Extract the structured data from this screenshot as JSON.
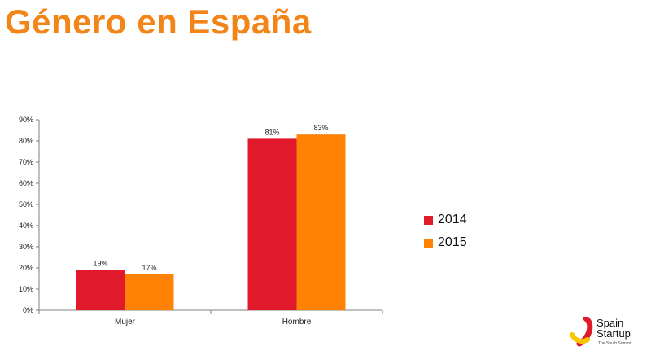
{
  "page": {
    "title": "Género en España"
  },
  "colors": {
    "title": "#f38418",
    "series_2014": "#e0192b",
    "series_2015": "#ff8205",
    "axis": "#7f7f7f"
  },
  "chart_data": {
    "type": "bar",
    "categories": [
      "Mujer",
      "Hombre"
    ],
    "series": [
      {
        "name": "2014",
        "values": [
          19,
          81
        ],
        "labels": [
          "19%",
          "81%"
        ]
      },
      {
        "name": "2015",
        "values": [
          17,
          83
        ],
        "labels": [
          "17%",
          "83%"
        ]
      }
    ],
    "yticks": [
      "0%",
      "10%",
      "20%",
      "30%",
      "40%",
      "50%",
      "60%",
      "70%",
      "80%",
      "90%"
    ],
    "ylim": [
      0,
      90
    ],
    "grid": false,
    "legend": "right"
  },
  "logo": {
    "line1": "Spain",
    "line2": "Startup",
    "line3": "The South Summit",
    "icon": "spain-startup-logo-icon"
  }
}
